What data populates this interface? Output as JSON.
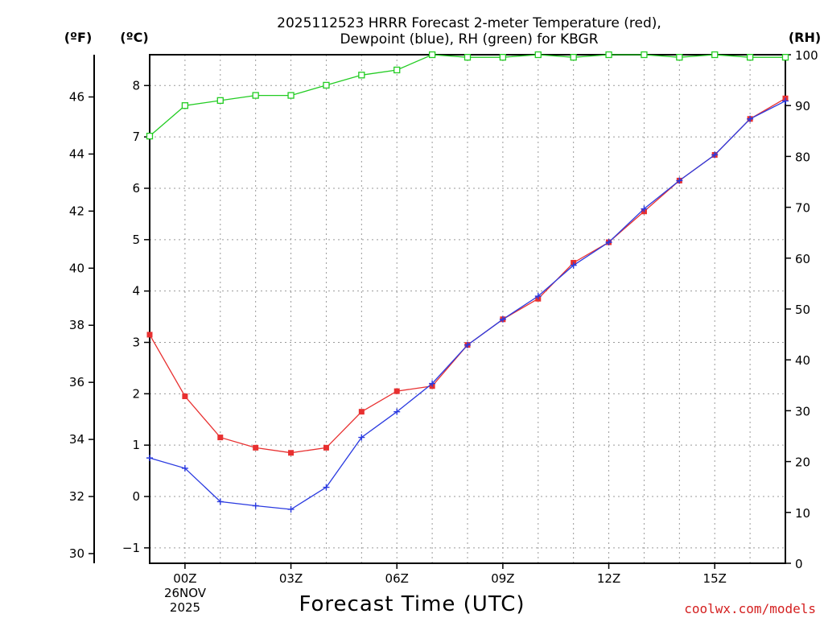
{
  "chart_data": {
    "type": "line",
    "title_line1": "2025112523 HRRR Forecast 2-meter Temperature (red),",
    "title_line2": "Dewpoint (blue), RH (green) for KBGR",
    "xlabel": "Forecast Time (UTC)",
    "date_label_line1": "26NOV",
    "date_label_line2": "2025",
    "units": {
      "fahrenheit": "(ºF)",
      "celsius": "(ºC)",
      "rh": "(RH)"
    },
    "x_hours": [
      -1,
      0,
      1,
      2,
      3,
      4,
      5,
      6,
      7,
      8,
      9,
      10,
      11,
      12,
      13,
      14,
      15,
      16,
      17
    ],
    "x_ticks": [
      {
        "hour": 0,
        "label": "00Z"
      },
      {
        "hour": 3,
        "label": "03Z"
      },
      {
        "hour": 6,
        "label": "06Z"
      },
      {
        "hour": 9,
        "label": "09Z"
      },
      {
        "hour": 12,
        "label": "12Z"
      },
      {
        "hour": 15,
        "label": "15Z"
      }
    ],
    "x_range": [
      -1,
      17
    ],
    "celsius_axis": {
      "range": [
        -1.3,
        8.6
      ],
      "ticks": [
        -1,
        0,
        1,
        2,
        3,
        4,
        5,
        6,
        7,
        8
      ]
    },
    "fahrenheit_axis": {
      "range": [
        29.66,
        47.48
      ],
      "ticks": [
        30,
        32,
        34,
        36,
        38,
        40,
        42,
        44,
        46
      ]
    },
    "rh_axis": {
      "range": [
        0,
        100
      ],
      "ticks": [
        0,
        10,
        20,
        30,
        40,
        50,
        60,
        70,
        80,
        90,
        100
      ]
    },
    "series": [
      {
        "name": "Temperature",
        "unit": "C",
        "color": "#e83030",
        "marker": "square-filled",
        "values": [
          3.15,
          1.95,
          1.15,
          0.95,
          0.85,
          0.95,
          1.65,
          2.05,
          2.15,
          2.95,
          3.45,
          3.85,
          4.55,
          4.95,
          5.55,
          6.15,
          6.65,
          7.35,
          7.75
        ]
      },
      {
        "name": "Dewpoint",
        "unit": "C",
        "color": "#2a3ae0",
        "marker": "plus",
        "values": [
          0.75,
          0.55,
          -0.1,
          -0.18,
          -0.25,
          0.18,
          1.15,
          1.65,
          2.2,
          2.95,
          3.45,
          3.9,
          4.5,
          4.95,
          5.6,
          6.15,
          6.65,
          7.35,
          7.7
        ]
      },
      {
        "name": "RH",
        "unit": "%",
        "color": "#22cc22",
        "marker": "square-open",
        "values": [
          84,
          90,
          91,
          92,
          92,
          94,
          96,
          97,
          100,
          99.5,
          99.5,
          100,
          99.5,
          100,
          100,
          99.5,
          100,
          99.5,
          99.5
        ]
      }
    ],
    "grid": true
  },
  "credit": "coolwx.com/models"
}
